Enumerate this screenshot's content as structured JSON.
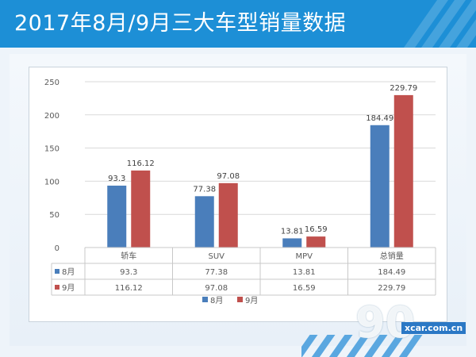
{
  "banner": {
    "title": "2017年8月/9月三大车型销量数据"
  },
  "watermark": {
    "logo_text": "xcar.com.cn",
    "logo_number": "90"
  },
  "colors": {
    "banner": "#1d8fd6",
    "series_aug": "#4a7ebb",
    "series_sep": "#c0504d",
    "axis_text": "#595959",
    "grid": "#d9d9d9"
  },
  "chart_data": {
    "type": "bar",
    "title": "",
    "xlabel": "",
    "ylabel": "",
    "categories": [
      "轿车",
      "SUV",
      "MPV",
      "总销量"
    ],
    "series": [
      {
        "name": "8月",
        "values": [
          93.3,
          77.38,
          13.81,
          184.49
        ],
        "labels": [
          "93.3",
          "77.38",
          "13.81",
          "184.49"
        ]
      },
      {
        "name": "9月",
        "values": [
          116.12,
          97.08,
          16.59,
          229.79
        ],
        "labels": [
          "116.12",
          "97.08",
          "16.59",
          "229.79"
        ]
      }
    ],
    "ylim": [
      0,
      250
    ],
    "yticks": [
      "0",
      "50",
      "100",
      "150",
      "200",
      "250"
    ],
    "ytick_values": [
      0,
      50,
      100,
      150,
      200,
      250
    ],
    "grid": true,
    "data_table": true,
    "legend_position": "bottom"
  }
}
